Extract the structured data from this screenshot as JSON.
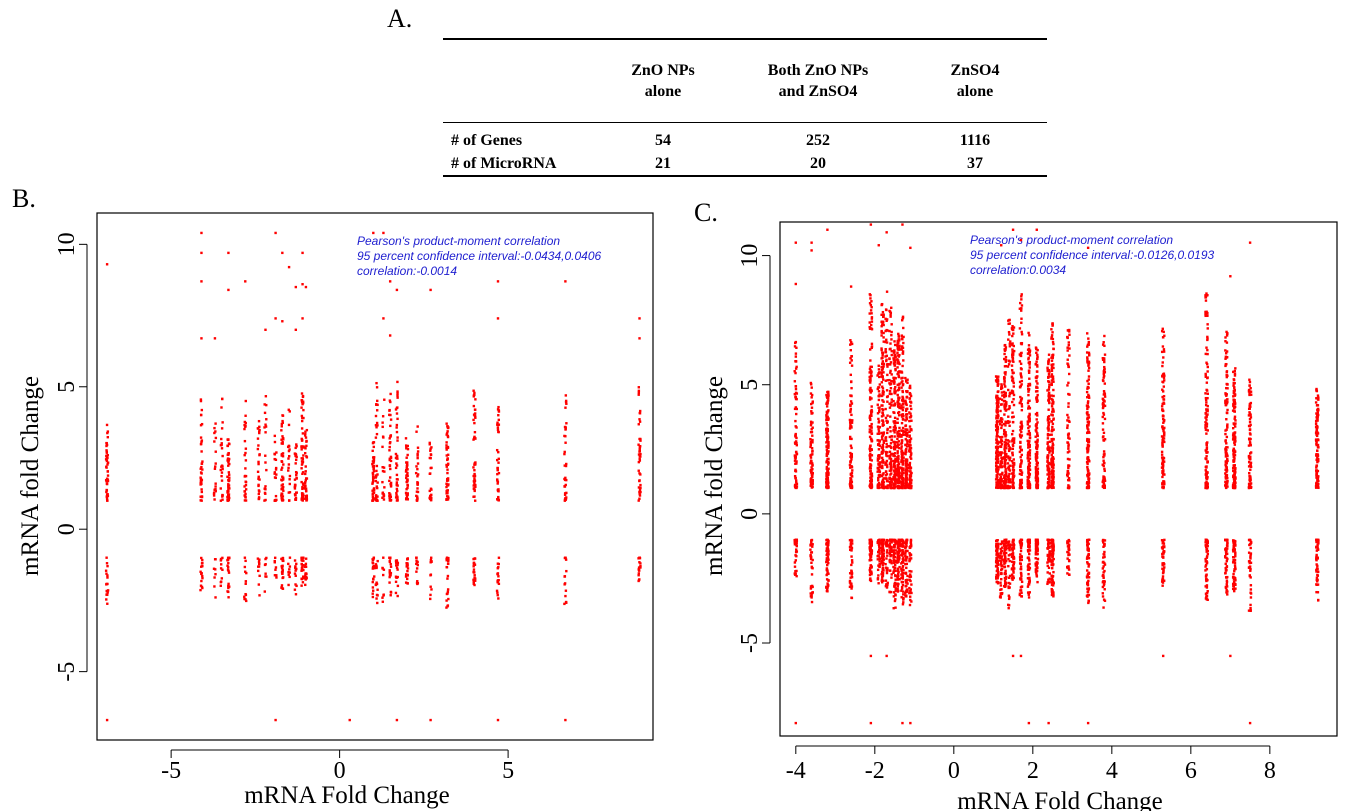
{
  "labels": {
    "a": "A.",
    "b": "B.",
    "c": "C."
  },
  "table": {
    "headers": [
      "",
      "ZnO NPs\nalone",
      "Both ZnO NPs\nand ZnSO4",
      "ZnSO4\nalone"
    ],
    "rows": [
      [
        "# of Genes",
        "54",
        "252",
        "1116"
      ],
      [
        "# of MicroRNA",
        "21",
        "20",
        "37"
      ]
    ]
  },
  "chart_data": [
    {
      "type": "scatter",
      "panel": "B.",
      "xlabel": "mRNA Fold Change",
      "ylabel": "mRNA fold Change",
      "xlim": [
        -7.2,
        9.3
      ],
      "ylim": [
        -7.4,
        11.1
      ],
      "xticks": [
        "-5",
        "0",
        "5"
      ],
      "yticks": [
        "-5",
        "0",
        "5",
        "10"
      ],
      "color": "#ff0000",
      "annotation": [
        "Pearson's product-moment correlation",
        "95 percent confidence interval:-0.0434,0.0406",
        "correlation:-0.0014"
      ],
      "x_columns": [
        -6.9,
        -4.1,
        -3.7,
        -3.5,
        -3.3,
        -2.8,
        -2.4,
        -2.2,
        -1.9,
        -1.7,
        -1.5,
        -1.3,
        -1.1,
        -1.0,
        1.0,
        1.1,
        1.3,
        1.5,
        1.7,
        2.0,
        2.3,
        2.7,
        3.2,
        4.0,
        4.7,
        6.7,
        8.9
      ],
      "y_pos_range": [
        1.0,
        5.5
      ],
      "y_neg_range": [
        -2.8,
        -1.0
      ],
      "outliers": [
        [
          -6.9,
          9.3
        ],
        [
          -4.1,
          10.4
        ],
        [
          -4.1,
          9.7
        ],
        [
          -4.1,
          8.7
        ],
        [
          -3.3,
          9.7
        ],
        [
          -3.3,
          8.4
        ],
        [
          -2.8,
          8.7
        ],
        [
          -1.9,
          10.4
        ],
        [
          -1.7,
          9.7
        ],
        [
          -1.5,
          9.2
        ],
        [
          -1.3,
          8.5
        ],
        [
          -1.1,
          9.7
        ],
        [
          -1.1,
          8.6
        ],
        [
          -1.0,
          8.5
        ],
        [
          1.0,
          10.4
        ],
        [
          1.3,
          10.4
        ],
        [
          1.5,
          8.7
        ],
        [
          1.7,
          8.4
        ],
        [
          2.7,
          8.4
        ],
        [
          4.7,
          8.7
        ],
        [
          6.7,
          8.7
        ],
        [
          -4.1,
          6.7
        ],
        [
          -3.7,
          6.7
        ],
        [
          -2.2,
          7.0
        ],
        [
          -1.9,
          7.4
        ],
        [
          -1.7,
          7.3
        ],
        [
          -1.3,
          7.0
        ],
        [
          -1.1,
          7.4
        ],
        [
          1.3,
          7.4
        ],
        [
          1.5,
          6.8
        ],
        [
          4.7,
          7.4
        ],
        [
          8.9,
          7.4
        ],
        [
          8.9,
          6.7
        ],
        [
          -6.9,
          -6.7
        ],
        [
          -1.9,
          -6.7
        ],
        [
          0.3,
          -6.7
        ],
        [
          1.7,
          -6.7
        ],
        [
          2.7,
          -6.7
        ],
        [
          4.7,
          -6.7
        ],
        [
          6.7,
          -6.7
        ]
      ]
    },
    {
      "type": "scatter",
      "panel": "C.",
      "xlabel": "mRNA Fold Change",
      "ylabel": "mRNA fold Change",
      "xlim": [
        -4.4,
        9.7
      ],
      "ylim": [
        -8.6,
        11.3
      ],
      "xticks": [
        "-4",
        "-2",
        "0",
        "2",
        "4",
        "6",
        "8"
      ],
      "yticks": [
        "-5",
        "0",
        "5",
        "10"
      ],
      "color": "#ff0000",
      "annotation": [
        "Pearson's product-moment correlation",
        "95 percent confidence interval:-0.0126,0.0193",
        "correlation:0.0034"
      ],
      "x_columns": [
        -4.0,
        -3.6,
        -3.2,
        -2.6,
        -2.1,
        -1.9,
        -1.8,
        -1.7,
        -1.6,
        -1.5,
        -1.4,
        -1.3,
        -1.2,
        -1.1,
        1.1,
        1.2,
        1.3,
        1.4,
        1.5,
        1.7,
        1.9,
        2.1,
        2.4,
        2.5,
        2.9,
        3.4,
        3.8,
        5.3,
        6.4,
        6.9,
        7.1,
        7.5,
        9.2
      ],
      "y_pos_range": [
        1.0,
        8.8
      ],
      "y_neg_range": [
        -3.8,
        -1.0
      ],
      "outliers": [
        [
          -4.0,
          10.5
        ],
        [
          -3.6,
          10.5
        ],
        [
          -3.2,
          11.0
        ],
        [
          -2.1,
          11.2
        ],
        [
          -1.9,
          10.4
        ],
        [
          -1.7,
          10.9
        ],
        [
          -1.3,
          11.2
        ],
        [
          -1.1,
          10.3
        ],
        [
          1.2,
          10.4
        ],
        [
          1.5,
          11.0
        ],
        [
          1.7,
          10.6
        ],
        [
          2.1,
          11.0
        ],
        [
          3.4,
          10.3
        ],
        [
          7.0,
          9.2
        ],
        [
          7.5,
          10.5
        ],
        [
          -4.0,
          8.9
        ],
        [
          -3.6,
          10.2
        ],
        [
          -2.6,
          8.8
        ],
        [
          -2.1,
          -5.5
        ],
        [
          -1.7,
          -5.5
        ],
        [
          1.5,
          -5.5
        ],
        [
          1.7,
          -5.5
        ],
        [
          5.3,
          -5.5
        ],
        [
          7.0,
          -5.5
        ],
        [
          -4.0,
          -8.1
        ],
        [
          -2.1,
          -8.1
        ],
        [
          -1.3,
          -8.1
        ],
        [
          -1.1,
          -8.1
        ],
        [
          1.9,
          -8.1
        ],
        [
          2.4,
          -8.1
        ],
        [
          3.4,
          -8.1
        ],
        [
          7.5,
          -8.1
        ]
      ]
    }
  ]
}
